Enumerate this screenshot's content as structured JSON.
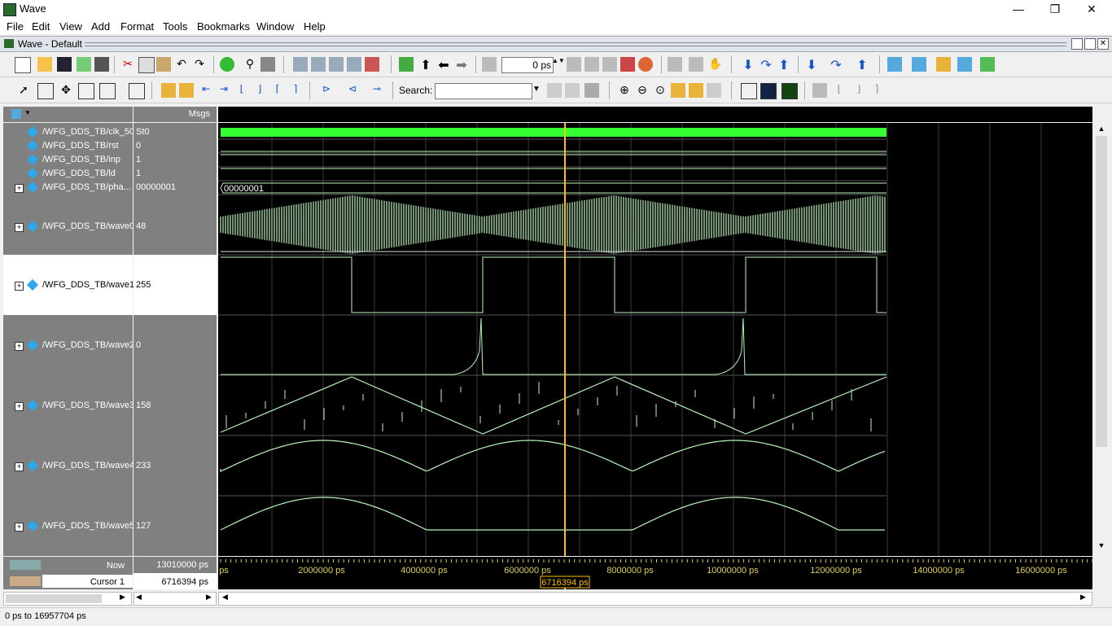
{
  "window": {
    "title": "Wave",
    "minimize": "—",
    "restore": "❐",
    "close": "✕"
  },
  "menu": [
    "File",
    "Edit",
    "View",
    "Add",
    "Format",
    "Tools",
    "Bookmarks",
    "Window",
    "Help"
  ],
  "subwindow": {
    "title": "Wave - Default"
  },
  "toolbar": {
    "time_value": "0",
    "time_unit": "ps",
    "search_label": "Search:"
  },
  "header": {
    "msgs": "Msgs"
  },
  "signals": [
    {
      "name": "/WFG_DDS_TB/clk_50",
      "value": "St0",
      "expandable": false
    },
    {
      "name": "/WFG_DDS_TB/rst",
      "value": "0",
      "expandable": false
    },
    {
      "name": "/WFG_DDS_TB/inp",
      "value": "1",
      "expandable": false
    },
    {
      "name": "/WFG_DDS_TB/ld",
      "value": "1",
      "expandable": false
    },
    {
      "name": "/WFG_DDS_TB/pha...",
      "value": "00000001",
      "expandable": true
    },
    {
      "name": "/WFG_DDS_TB/wave0",
      "value": "48",
      "expandable": true
    },
    {
      "name": "/WFG_DDS_TB/wave1",
      "value": "255",
      "expandable": true
    },
    {
      "name": "/WFG_DDS_TB/wave2",
      "value": "0",
      "expandable": true
    },
    {
      "name": "/WFG_DDS_TB/wave3",
      "value": "158",
      "expandable": true
    },
    {
      "name": "/WFG_DDS_TB/wave4",
      "value": "233",
      "expandable": true
    },
    {
      "name": "/WFG_DDS_TB/wave5",
      "value": "127",
      "expandable": true
    }
  ],
  "bus_label": "00000001",
  "footer": {
    "now_label": "Now",
    "now_value": "13010000 ps",
    "cursor_label": "Cursor 1",
    "cursor_value": "6716394 ps"
  },
  "timeline": {
    "ticks": [
      "ps",
      "2000000 ps",
      "4000000 ps",
      "6000000 ps",
      "8000000 ps",
      "10000000 ps",
      "12000000 ps",
      "14000000 ps",
      "16000000 ps"
    ],
    "cursor": "6716394 ps"
  },
  "status": "0 ps to 16957704 ps",
  "colors": {
    "wave": "#b8f5b8",
    "clk": "#33ff33",
    "cursor": "#ffc000",
    "grid": "#3a3a3a"
  }
}
